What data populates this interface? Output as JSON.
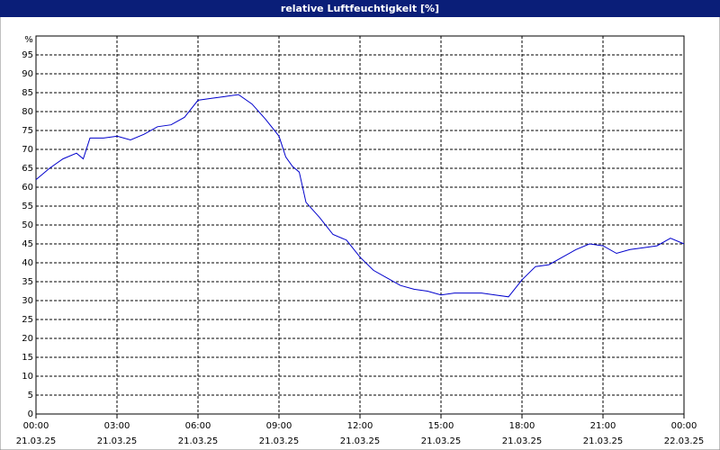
{
  "chart_data": {
    "type": "line",
    "title": "relative Luftfeuchtigkeit [%]",
    "ylabel": "%",
    "x": [
      0,
      0.5,
      1,
      1.5,
      1.75,
      2,
      2.5,
      3,
      3.5,
      4,
      4.5,
      5,
      5.5,
      6,
      6.5,
      7,
      7.5,
      8,
      8.5,
      9,
      9.25,
      9.5,
      9.75,
      10,
      10.5,
      11,
      11.5,
      12,
      12.5,
      13,
      13.5,
      14,
      14.5,
      15,
      15.5,
      16,
      16.5,
      17,
      17.5,
      18,
      18.5,
      19,
      19.5,
      20,
      20.5,
      21,
      21.5,
      22,
      22.5,
      23,
      23.5,
      24
    ],
    "series": [
      {
        "name": "relative Luftfeuchtigkeit",
        "color": "#0000cc",
        "values": [
          62,
          65,
          67.5,
          69,
          67.5,
          73,
          73,
          73.5,
          72.5,
          74,
          76,
          76.5,
          78.5,
          83,
          83.5,
          84,
          84.5,
          82,
          78,
          73.5,
          68,
          65.5,
          64,
          56,
          52,
          47.5,
          46,
          41.5,
          38,
          36,
          34,
          33,
          32.5,
          31.5,
          32,
          32,
          32,
          31.5,
          31,
          35.5,
          39,
          39.5,
          41.5,
          43.5,
          45,
          44.5,
          42.5,
          43.5,
          44,
          44.5,
          46.5,
          45
        ]
      }
    ],
    "xlim": [
      0,
      24
    ],
    "xticks": [
      {
        "value": 0,
        "label": "00:00"
      },
      {
        "value": 3,
        "label": "03:00"
      },
      {
        "value": 6,
        "label": "06:00"
      },
      {
        "value": 9,
        "label": "09:00"
      },
      {
        "value": 12,
        "label": "12:00"
      },
      {
        "value": 15,
        "label": "15:00"
      },
      {
        "value": 18,
        "label": "18:00"
      },
      {
        "value": 21,
        "label": "21:00"
      },
      {
        "value": 24,
        "label": "00:00"
      }
    ],
    "xtick_dates": [
      "21.03.25",
      "21.03.25",
      "21.03.25",
      "21.03.25",
      "21.03.25",
      "21.03.25",
      "21.03.25",
      "21.03.25",
      "22.03.25"
    ],
    "ylim": [
      0,
      100
    ],
    "yticks": [
      0,
      5,
      10,
      15,
      20,
      25,
      30,
      35,
      40,
      45,
      50,
      55,
      60,
      65,
      70,
      75,
      80,
      85,
      90,
      95
    ],
    "grid": true
  }
}
